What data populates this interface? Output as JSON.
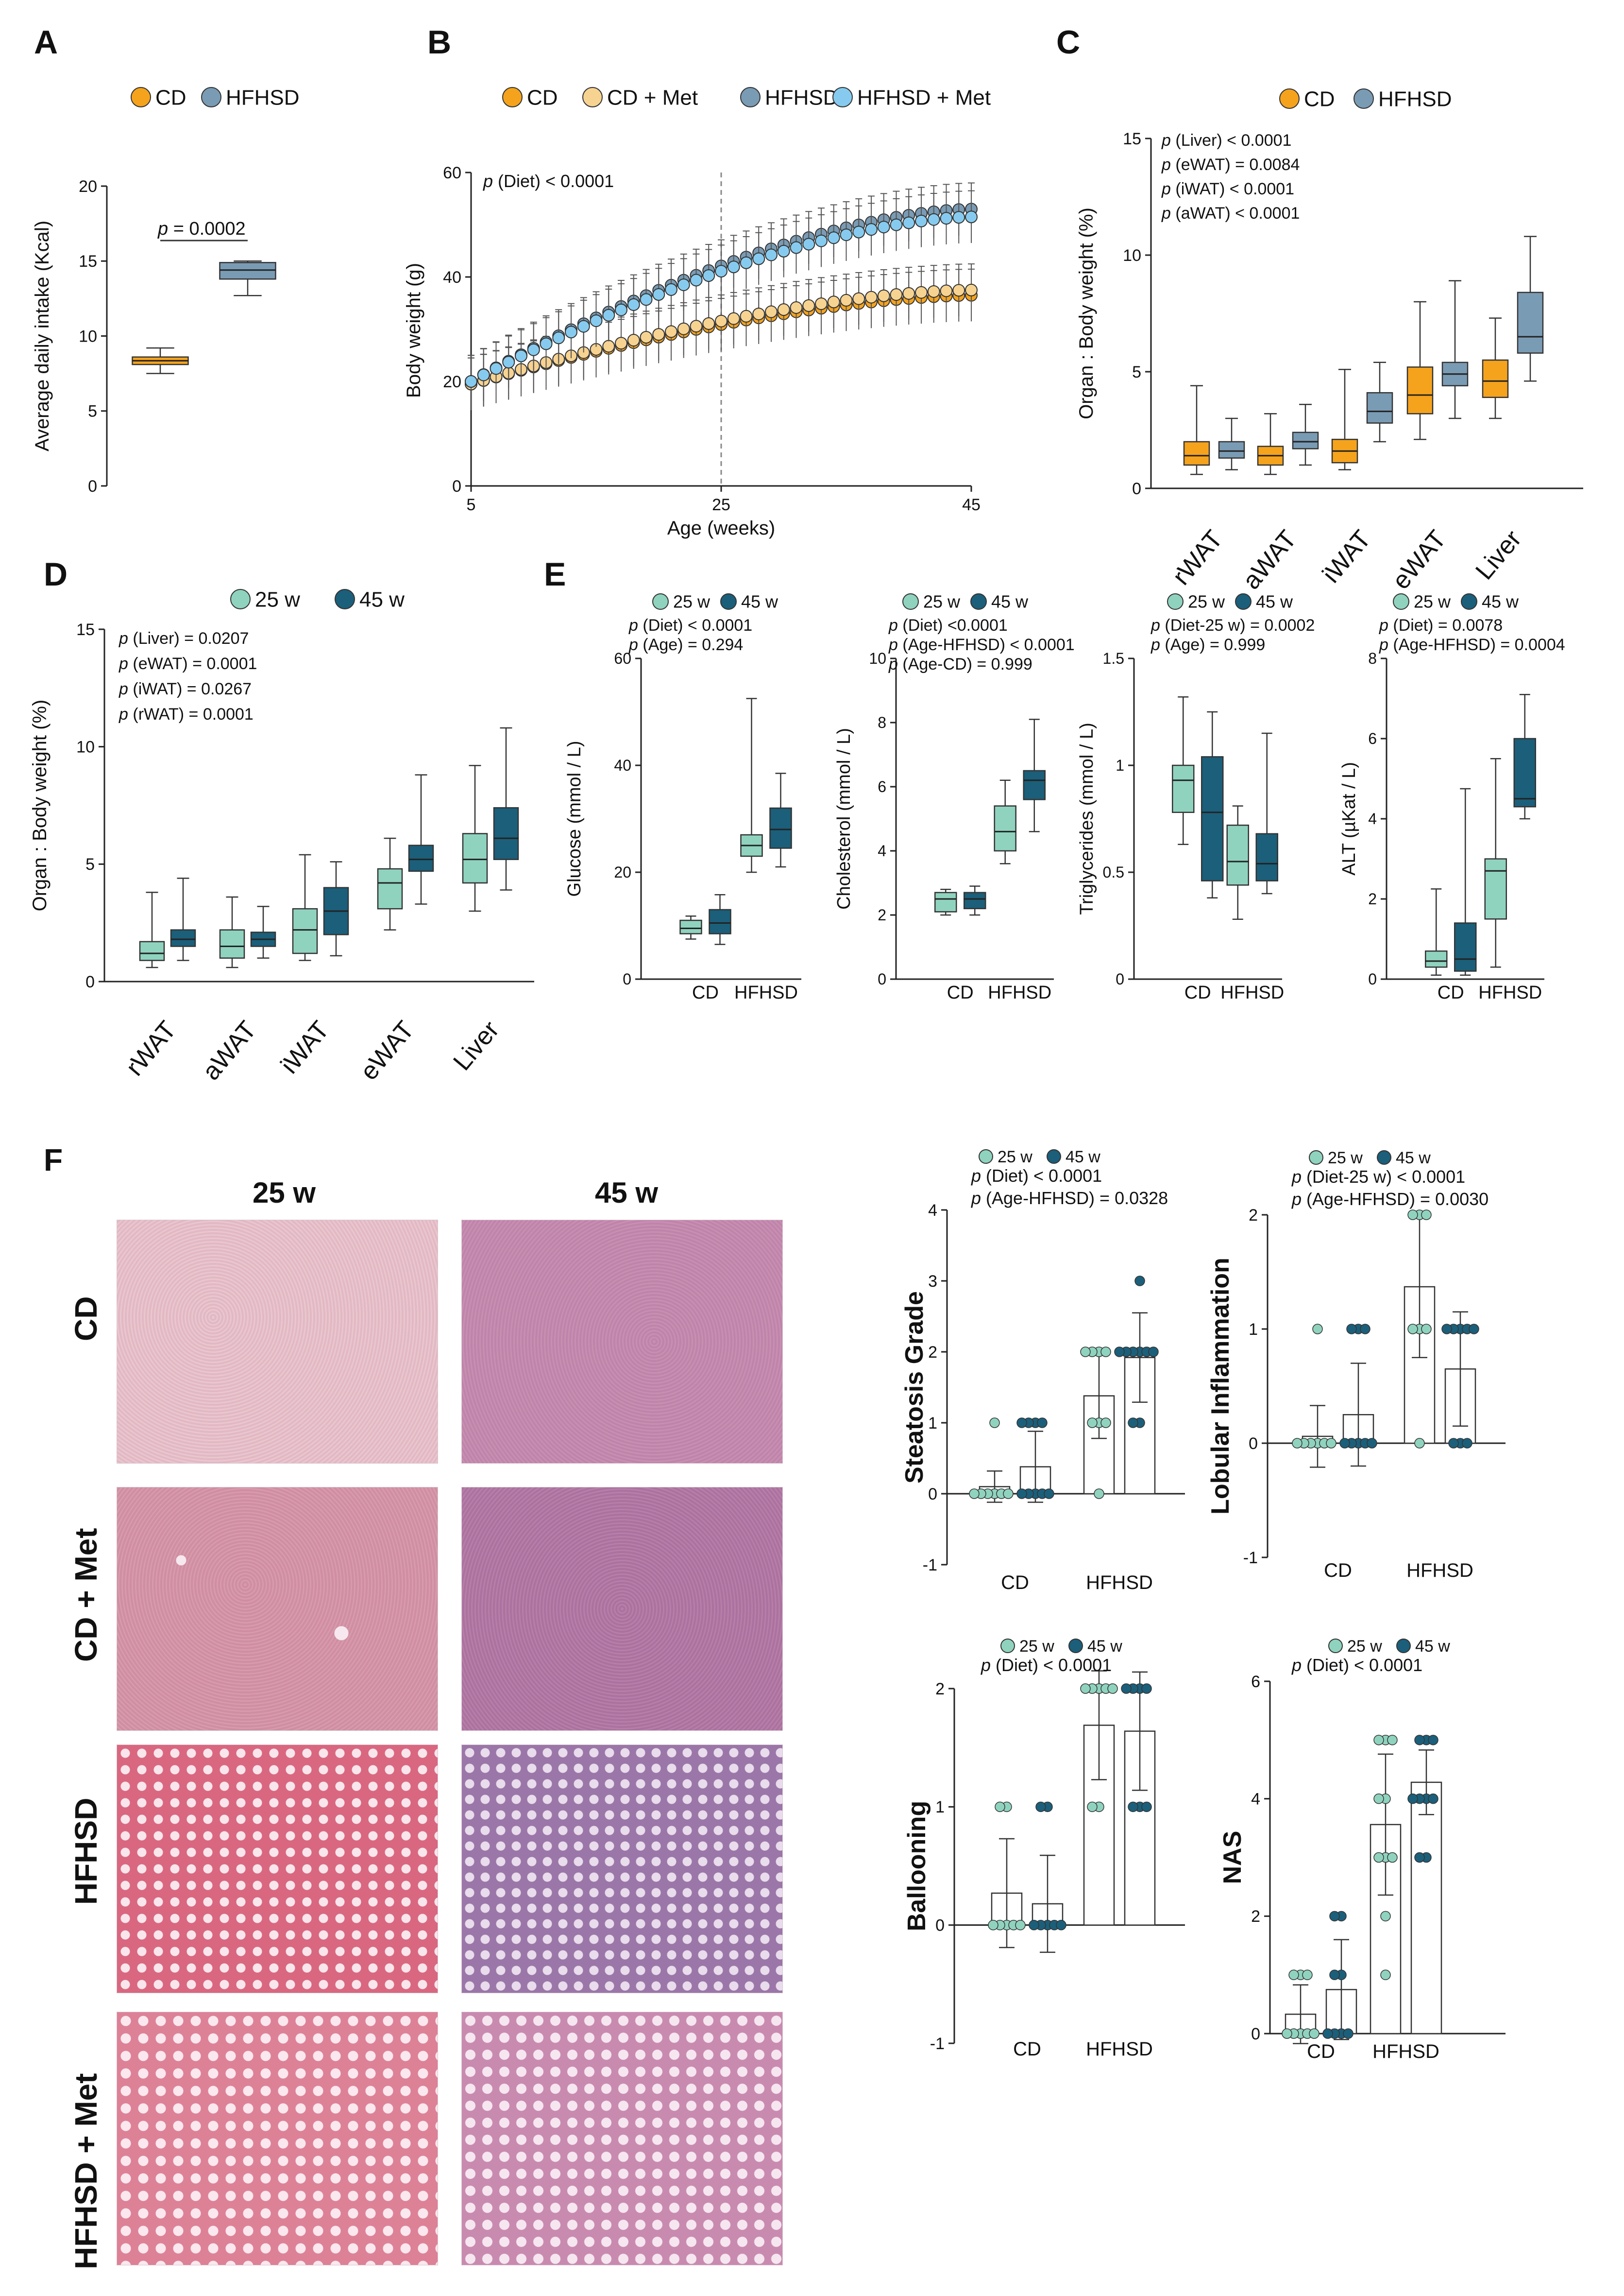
{
  "colors": {
    "cd": "#f5a31d",
    "hfhsd": "#7a9bb4",
    "cd_met": "#f7d391",
    "hfhsd_dark": "#3f7fc0",
    "hfhsd_met": "#86cbef",
    "w25": "#8fd3bf",
    "w45": "#1b5f7a",
    "axis": "#222222"
  },
  "histology": {
    "panel_letter": "F",
    "col_labels": [
      "25 w",
      "45 w"
    ],
    "row_labels": [
      "CD",
      "CD + Met",
      "HFHSD",
      "HFHSD + Met"
    ]
  },
  "chart_data": [
    {
      "panel": "A",
      "type": "box",
      "ylabel": "Average daily intake (Kcal)",
      "xlabel": "",
      "ylim": [
        0,
        20
      ],
      "yticks": [
        0,
        5,
        10,
        15,
        20
      ],
      "legend": [
        "CD",
        "HFHSD"
      ],
      "annotations": [
        "p = 0.0002"
      ],
      "groups": [
        {
          "name": "CD",
          "series": "cd",
          "min": 7.5,
          "q1": 8.1,
          "median": 8.35,
          "q3": 8.6,
          "max": 9.2
        },
        {
          "name": "HFHSD",
          "series": "hfhsd",
          "min": 12.7,
          "q1": 13.8,
          "median": 14.4,
          "q3": 14.9,
          "max": 15.0
        }
      ]
    },
    {
      "panel": "B",
      "type": "line",
      "ylabel": "Body weight (g)",
      "xlabel": "Age (weeks)",
      "xlim": [
        5,
        45
      ],
      "ylim": [
        0,
        60
      ],
      "xticks": [
        5,
        25,
        45
      ],
      "yticks": [
        0,
        20,
        40,
        60
      ],
      "annotations": [
        "p (Diet) < 0.0001"
      ],
      "vline": 25,
      "series": [
        {
          "name": "CD",
          "key": "cd",
          "start": 19.5,
          "end": 36.5,
          "err": 5
        },
        {
          "name": "CD + Met",
          "key": "cd_met",
          "start": 19.5,
          "end": 37.5,
          "err": 5
        },
        {
          "name": "HFHSD",
          "key": "hfhsd",
          "start": 20.0,
          "end": 53.0,
          "err": 5
        },
        {
          "name": "HFHSD + Met",
          "key": "hfhsd_met",
          "start": 20.0,
          "end": 51.5,
          "err": 5
        }
      ]
    },
    {
      "panel": "C",
      "type": "box",
      "ylabel": "Organ : Body weight (%)",
      "xlabel": "",
      "ylim": [
        0,
        15
      ],
      "yticks": [
        0,
        5,
        10,
        15
      ],
      "legend": [
        "CD",
        "HFHSD"
      ],
      "categories": [
        "rWAT",
        "aWAT",
        "iWAT",
        "eWAT",
        "Liver"
      ],
      "annotations": [
        "p (Liver) < 0.0001",
        "p (eWAT) = 0.0084",
        "p (iWAT) < 0.0001",
        "p (aWAT) < 0.0001"
      ],
      "series": [
        {
          "name": "CD",
          "key": "cd",
          "boxes": [
            [
              0.6,
              1.0,
              1.4,
              2.0,
              4.4
            ],
            [
              0.6,
              1.0,
              1.4,
              1.8,
              3.2
            ],
            [
              0.8,
              1.1,
              1.6,
              2.1,
              5.1
            ],
            [
              2.1,
              3.2,
              4.0,
              5.2,
              8.0
            ],
            [
              3.0,
              3.9,
              4.6,
              5.5,
              7.3
            ]
          ]
        },
        {
          "name": "HFHSD",
          "key": "hfhsd",
          "boxes": [
            [
              0.8,
              1.3,
              1.6,
              2.0,
              3.0
            ],
            [
              1.0,
              1.7,
              2.0,
              2.4,
              3.6
            ],
            [
              2.0,
              2.8,
              3.3,
              4.1,
              5.4
            ],
            [
              3.0,
              4.4,
              4.9,
              5.4,
              8.9
            ],
            [
              4.6,
              5.8,
              6.5,
              8.4,
              10.8
            ]
          ]
        }
      ]
    },
    {
      "panel": "D",
      "type": "box",
      "ylabel": "Organ : Body weight (%)",
      "xlabel": "",
      "ylim": [
        0,
        15
      ],
      "yticks": [
        0,
        5,
        10,
        15
      ],
      "legend": [
        "25 w",
        "45 w"
      ],
      "categories": [
        "rWAT",
        "aWAT",
        "iWAT",
        "eWAT",
        "Liver"
      ],
      "annotations": [
        "p (Liver) = 0.0207",
        "p (eWAT) = 0.0001",
        "p (iWAT) = 0.0267",
        "p (rWAT) = 0.0001"
      ],
      "series": [
        {
          "name": "25 w",
          "key": "w25",
          "boxes": [
            [
              0.6,
              0.9,
              1.2,
              1.7,
              3.8
            ],
            [
              0.6,
              1.0,
              1.5,
              2.2,
              3.6
            ],
            [
              0.9,
              1.2,
              2.2,
              3.1,
              5.4
            ],
            [
              2.2,
              3.1,
              4.2,
              4.8,
              6.1
            ],
            [
              3.0,
              4.2,
              5.2,
              6.3,
              9.2
            ]
          ]
        },
        {
          "name": "45 w",
          "key": "w45",
          "boxes": [
            [
              0.9,
              1.5,
              1.8,
              2.2,
              4.4
            ],
            [
              1.0,
              1.5,
              1.8,
              2.1,
              3.2
            ],
            [
              1.1,
              2.0,
              3.0,
              4.0,
              5.1
            ],
            [
              3.3,
              4.7,
              5.2,
              5.8,
              8.8
            ],
            [
              3.9,
              5.2,
              6.1,
              7.4,
              10.8
            ]
          ]
        }
      ]
    },
    {
      "panel": "E",
      "type": "box",
      "ylabel": "Glucose (mmol / L)",
      "legend": [
        "25 w",
        "45 w"
      ],
      "categories": [
        "CD",
        "HFHSD"
      ],
      "ylim": [
        0,
        60
      ],
      "yticks": [
        0,
        20,
        40,
        60
      ],
      "annotations": [
        "p (Diet) < 0.0001",
        "p (Age) = 0.294"
      ],
      "series": [
        {
          "name": "25 w",
          "key": "w25",
          "boxes": [
            [
              7.5,
              8.5,
              9.5,
              11.0,
              11.8
            ],
            [
              20.0,
              23.0,
              25.0,
              27.0,
              52.5
            ]
          ]
        },
        {
          "name": "45 w",
          "key": "w45",
          "boxes": [
            [
              6.5,
              8.5,
              10.5,
              13.0,
              15.8
            ],
            [
              21.0,
              24.5,
              28.0,
              32.0,
              38.5
            ]
          ]
        }
      ]
    },
    {
      "panel": "E2",
      "type": "box",
      "ylabel": "Cholesterol (mmol / L)",
      "legend": [
        "25 w",
        "45 w"
      ],
      "categories": [
        "CD",
        "HFHSD"
      ],
      "ylim": [
        0,
        10
      ],
      "yticks": [
        0,
        2,
        4,
        6,
        8,
        10
      ],
      "annotations": [
        "p (Diet) <0.0001",
        "p (Age-HFHSD) < 0.0001",
        "p (Age-CD) = 0.999"
      ],
      "series": [
        {
          "name": "25 w",
          "key": "w25",
          "boxes": [
            [
              2.0,
              2.1,
              2.5,
              2.7,
              2.8
            ],
            [
              3.6,
              4.0,
              4.6,
              5.4,
              6.2
            ]
          ]
        },
        {
          "name": "45 w",
          "key": "w45",
          "boxes": [
            [
              2.0,
              2.2,
              2.5,
              2.7,
              2.9
            ],
            [
              4.6,
              5.6,
              6.2,
              6.5,
              8.1
            ]
          ]
        }
      ]
    },
    {
      "panel": "E3",
      "type": "box",
      "ylabel": "Triglycerides (mmol / L)",
      "legend": [
        "25 w",
        "45 w"
      ],
      "categories": [
        "CD",
        "HFHSD"
      ],
      "ylim": [
        0,
        1.5
      ],
      "yticks": [
        0,
        0.5,
        1,
        1.5
      ],
      "annotations": [
        "p (Diet-25 w) = 0.0002",
        "p (Age) = 0.999"
      ],
      "series": [
        {
          "name": "25 w",
          "key": "w25",
          "boxes": [
            [
              0.63,
              0.78,
              0.93,
              1.0,
              1.32
            ],
            [
              0.28,
              0.44,
              0.55,
              0.72,
              0.81
            ]
          ]
        },
        {
          "name": "45 w",
          "key": "w45",
          "boxes": [
            [
              0.38,
              0.46,
              0.78,
              1.04,
              1.25
            ],
            [
              0.4,
              0.46,
              0.54,
              0.68,
              1.15
            ]
          ]
        }
      ]
    },
    {
      "panel": "E4",
      "type": "box",
      "ylabel": "ALT (µKat / L)",
      "legend": [
        "25 w",
        "45 w"
      ],
      "categories": [
        "CD",
        "HFHSD"
      ],
      "ylim": [
        0,
        8
      ],
      "yticks": [
        0,
        2,
        4,
        6,
        8
      ],
      "annotations": [
        "p (Diet) = 0.0078",
        "p (Age-HFHSD) = 0.0004"
      ],
      "series": [
        {
          "name": "25 w",
          "key": "w25",
          "boxes": [
            [
              0.1,
              0.3,
              0.45,
              0.7,
              2.25
            ],
            [
              0.3,
              1.5,
              2.7,
              3.0,
              5.5
            ]
          ]
        },
        {
          "name": "45 w",
          "key": "w45",
          "boxes": [
            [
              0.1,
              0.2,
              0.5,
              1.4,
              4.75
            ],
            [
              4.0,
              4.3,
              4.5,
              6.0,
              7.1
            ]
          ]
        }
      ]
    },
    {
      "panel": "F1",
      "type": "bar",
      "ylabel": "Steatosis Grade",
      "legend": [
        "25 w",
        "45 w"
      ],
      "categories": [
        "CD",
        "HFHSD"
      ],
      "ylim": [
        -1,
        4
      ],
      "yticks": [
        -1,
        0,
        1,
        2,
        3,
        4
      ],
      "annotations": [
        "p (Diet) < 0.0001",
        "p (Age-HFHSD) = 0.0328"
      ],
      "bars": [
        {
          "cat": 0,
          "series": "w25",
          "mean": 0.1,
          "sd": 0.22,
          "points": [
            0,
            0,
            0,
            0,
            0,
            0,
            1
          ]
        },
        {
          "cat": 0,
          "series": "w45",
          "mean": 0.38,
          "sd": 0.5,
          "points": [
            0,
            0,
            0,
            0,
            0,
            1,
            1,
            1,
            1
          ]
        },
        {
          "cat": 1,
          "series": "w25",
          "mean": 1.38,
          "sd": 0.6,
          "points": [
            0,
            1,
            1,
            1,
            2,
            2,
            2,
            2
          ]
        },
        {
          "cat": 1,
          "series": "w45",
          "mean": 1.92,
          "sd": 0.63,
          "points": [
            1,
            1,
            2,
            2,
            2,
            2,
            2,
            2,
            3
          ]
        }
      ]
    },
    {
      "panel": "F2",
      "type": "bar",
      "ylabel": "Lobular Inflammation",
      "legend": [
        "25 w",
        "45 w"
      ],
      "categories": [
        "CD",
        "HFHSD"
      ],
      "ylim": [
        -1,
        2
      ],
      "yticks": [
        -1,
        0,
        1,
        2
      ],
      "annotations": [
        "p (Diet-25 w) < 0.0001",
        "p (Age-HFHSD) = 0.0030"
      ],
      "bars": [
        {
          "cat": 0,
          "series": "w25",
          "mean": 0.06,
          "sd": 0.27,
          "points": [
            0,
            0,
            0,
            0,
            0,
            0,
            1
          ]
        },
        {
          "cat": 0,
          "series": "w45",
          "mean": 0.25,
          "sd": 0.45,
          "points": [
            0,
            0,
            0,
            0,
            0,
            1,
            1,
            1
          ]
        },
        {
          "cat": 1,
          "series": "w25",
          "mean": 1.37,
          "sd": 0.62,
          "points": [
            0,
            1,
            1,
            1,
            2,
            2,
            2
          ]
        },
        {
          "cat": 1,
          "series": "w45",
          "mean": 0.65,
          "sd": 0.5,
          "points": [
            0,
            0,
            0,
            1,
            1,
            1,
            1,
            1
          ]
        }
      ]
    },
    {
      "panel": "F3",
      "type": "bar",
      "ylabel": "Ballooning",
      "legend": [
        "25 w",
        "45 w"
      ],
      "categories": [
        "CD",
        "HFHSD"
      ],
      "ylim": [
        -1,
        2
      ],
      "yticks": [
        -1,
        0,
        1,
        2
      ],
      "annotations": [
        "p (Diet) < 0.0001"
      ],
      "bars": [
        {
          "cat": 0,
          "series": "w25",
          "mean": 0.27,
          "sd": 0.46,
          "points": [
            0,
            0,
            0,
            0,
            0,
            1,
            1
          ]
        },
        {
          "cat": 0,
          "series": "w45",
          "mean": 0.18,
          "sd": 0.41,
          "points": [
            0,
            0,
            0,
            0,
            0,
            1,
            1
          ]
        },
        {
          "cat": 1,
          "series": "w25",
          "mean": 1.69,
          "sd": 0.46,
          "points": [
            1,
            1,
            2,
            2,
            2,
            2,
            2
          ]
        },
        {
          "cat": 1,
          "series": "w45",
          "mean": 1.64,
          "sd": 0.5,
          "points": [
            1,
            1,
            1,
            2,
            2,
            2,
            2
          ]
        }
      ]
    },
    {
      "panel": "F4",
      "type": "bar",
      "ylabel": "NAS",
      "legend": [
        "25 w",
        "45 w"
      ],
      "categories": [
        "CD",
        "HFHSD"
      ],
      "ylim": [
        0,
        6
      ],
      "yticks": [
        0,
        2,
        4,
        6
      ],
      "annotations": [
        "p (Diet) < 0.0001"
      ],
      "bars": [
        {
          "cat": 0,
          "series": "w25",
          "mean": 0.33,
          "sd": 0.5,
          "points": [
            0,
            0,
            0,
            0,
            0,
            1,
            1,
            1
          ]
        },
        {
          "cat": 0,
          "series": "w45",
          "mean": 0.75,
          "sd": 0.85,
          "points": [
            0,
            0,
            0,
            0,
            1,
            1,
            2,
            2
          ]
        },
        {
          "cat": 1,
          "series": "w25",
          "mean": 3.56,
          "sd": 1.2,
          "points": [
            1,
            2,
            3,
            3,
            3,
            4,
            4,
            5,
            5,
            5
          ]
        },
        {
          "cat": 1,
          "series": "w45",
          "mean": 4.28,
          "sd": 0.55,
          "points": [
            3,
            3,
            4,
            4,
            4,
            4,
            5,
            5,
            5
          ]
        }
      ]
    }
  ]
}
